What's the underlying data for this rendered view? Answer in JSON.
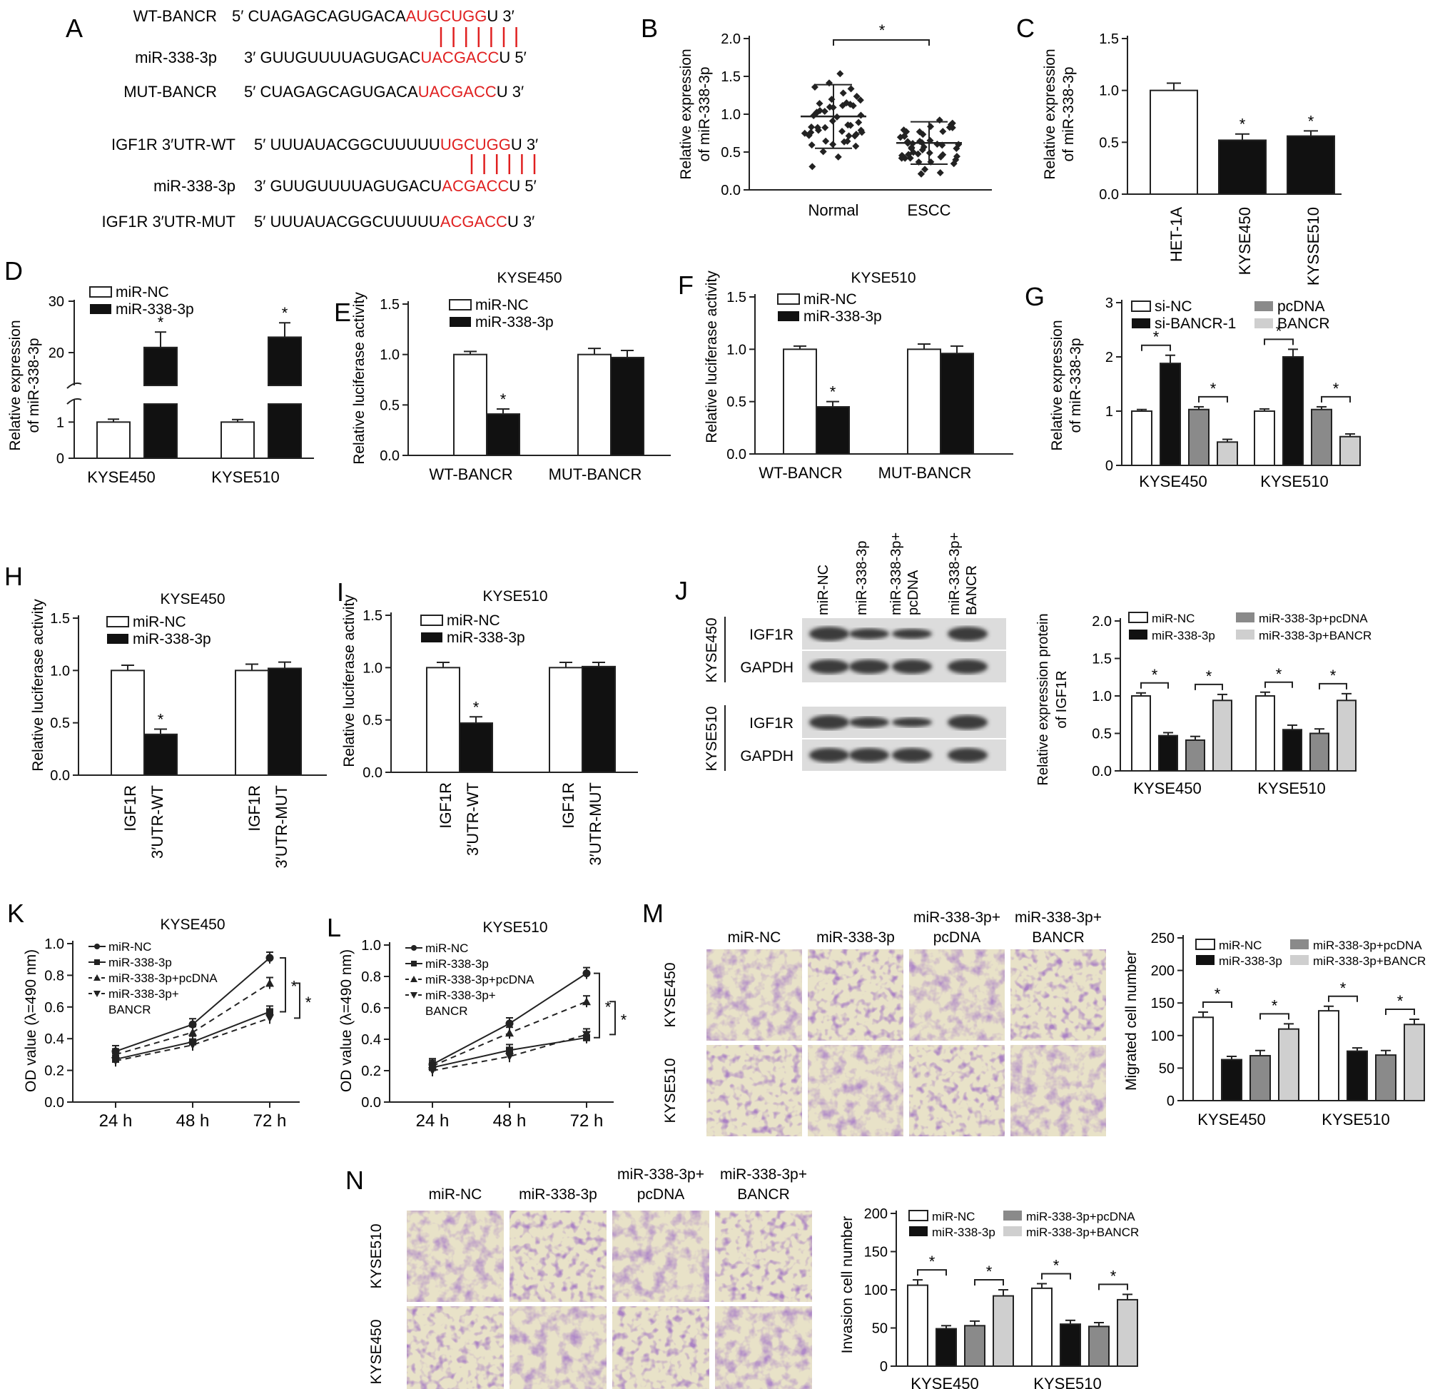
{
  "colors": {
    "red": "#e02020",
    "black": "#111111",
    "dark_gray": "#6d6d6d",
    "mid_gray": "#8a8a8a",
    "light_gray": "#cfcfcf",
    "blot": "#3a3a3a",
    "stain": "#6b3d8f"
  },
  "panel_letters": {
    "A": "A",
    "B": "B",
    "C": "C",
    "D": "D",
    "E": "E",
    "F": "F",
    "G": "G",
    "H": "H",
    "I": "I",
    "J": "J",
    "K": "K",
    "L": "L",
    "M": "M",
    "N": "N"
  },
  "panelA": {
    "rows": [
      {
        "label": "WT-BANCR",
        "p5": "5′ ",
        "seq": "CUAGAGCAGUGACA",
        "red": "AUGCUGG",
        "tail": "U",
        "p3": " 3′"
      },
      {
        "label": "miR-338-3p",
        "p5": "3′ ",
        "seq": "GUUGUUUUAGUGAC",
        "red": "UACGACC",
        "tail": "U",
        "p3": " 5′"
      },
      {
        "label": "MUT-BANCR",
        "p5": "5′ ",
        "seq": "CUAGAGCAGUGACA",
        "red": "UACGACC",
        "tail": "U",
        "p3": " 3′"
      },
      {
        "label": "IGF1R 3′UTR-WT",
        "p5": "5′ ",
        "seq": "UUUAUACGGCUUUUU",
        "red": "UGCUGG",
        "tail": "U",
        "p3": " 3′"
      },
      {
        "label": "miR-338-3p",
        "p5": "3′ ",
        "seq": "GUUGUUUUAGUGACU",
        "red": "ACGACC",
        "tail": "U",
        "p3": " 5′"
      },
      {
        "label": "IGF1R 3′UTR-MUT",
        "p5": "5′ ",
        "seq": "UUUAUACGGCUUUUU",
        "red": "ACGACC",
        "tail": "U",
        "p3": " 3′"
      }
    ]
  },
  "chart_data": [
    {
      "id": "B",
      "type": "scatter",
      "ylabel": "Relative expression of miR-338-3p",
      "categories": [
        "Normal",
        "ESCC"
      ],
      "ylim": [
        0,
        2.0
      ],
      "yticks": [
        "0.0",
        "0.5",
        "1.0",
        "1.5",
        "2.0"
      ],
      "means": [
        0.97,
        0.62
      ],
      "sd": [
        0.42,
        0.28
      ],
      "sig": "*"
    },
    {
      "id": "C",
      "type": "bar",
      "ylabel": "Relative expression of miR-338-3p",
      "categories": [
        "HET-1A",
        "KYSE450",
        "KYSSE510"
      ],
      "values": [
        1.0,
        0.52,
        0.56
      ],
      "errors": [
        0.07,
        0.06,
        0.05
      ],
      "ylim": [
        0,
        1.5
      ],
      "yticks": [
        "0.0",
        "0.5",
        "1.0",
        "1.5"
      ],
      "stars": [
        "",
        "*",
        "*"
      ]
    },
    {
      "id": "D",
      "type": "bar",
      "ylabel": "Relative expression of miR-338-3p",
      "categories": [
        "KYSE450",
        "KYSE510"
      ],
      "series": [
        {
          "name": "miR-NC",
          "values": [
            1.0,
            1.0
          ],
          "errors": [
            0.08,
            0.07
          ]
        },
        {
          "name": "miR-338-3p",
          "values": [
            21.0,
            23.0
          ],
          "errors": [
            3.0,
            2.8
          ]
        }
      ],
      "yticks": [
        "0",
        "1",
        "20",
        "30"
      ],
      "axis_break": true,
      "stars": [
        "*",
        "*"
      ]
    },
    {
      "id": "E",
      "type": "bar",
      "title": "KYSE450",
      "ylabel": "Relative luciferase activity",
      "categories": [
        "WT-BANCR",
        "MUT-BANCR"
      ],
      "series": [
        {
          "name": "miR-NC",
          "values": [
            1.0,
            1.0
          ],
          "errors": [
            0.03,
            0.06
          ]
        },
        {
          "name": "miR-338-3p",
          "values": [
            0.41,
            0.97
          ],
          "errors": [
            0.05,
            0.07
          ]
        }
      ],
      "ylim": [
        0,
        1.5
      ],
      "yticks": [
        "0.0",
        "0.5",
        "1.0",
        "1.5"
      ],
      "stars": [
        "*",
        ""
      ]
    },
    {
      "id": "F",
      "type": "bar",
      "title": "KYSE510",
      "ylabel": "Relative luciferase activity",
      "categories": [
        "WT-BANCR",
        "MUT-BANCR"
      ],
      "series": [
        {
          "name": "miR-NC",
          "values": [
            1.0,
            1.0
          ],
          "errors": [
            0.03,
            0.05
          ]
        },
        {
          "name": "miR-338-3p",
          "values": [
            0.45,
            0.96
          ],
          "errors": [
            0.05,
            0.07
          ]
        }
      ],
      "ylim": [
        0,
        1.5
      ],
      "yticks": [
        "0.0",
        "0.5",
        "1.0",
        "1.5"
      ],
      "stars": [
        "*",
        ""
      ]
    },
    {
      "id": "G",
      "type": "bar",
      "ylabel": "Relative expression of miR-338-3p",
      "categories": [
        "KYSE450",
        "KYSE510"
      ],
      "series": [
        {
          "name": "si-NC",
          "values": [
            1.0,
            1.0
          ],
          "errors": [
            0.03,
            0.04
          ]
        },
        {
          "name": "si-BANCR-1",
          "values": [
            1.88,
            2.0
          ],
          "errors": [
            0.15,
            0.14
          ]
        },
        {
          "name": "pcDNA",
          "values": [
            1.03,
            1.03
          ],
          "errors": [
            0.05,
            0.05
          ]
        },
        {
          "name": "BANCR",
          "values": [
            0.43,
            0.53
          ],
          "errors": [
            0.05,
            0.05
          ]
        }
      ],
      "ylim": [
        0,
        3
      ],
      "yticks": [
        "0",
        "1",
        "2",
        "3"
      ],
      "brackets": [
        [
          0,
          1
        ],
        [
          2,
          3
        ]
      ]
    },
    {
      "id": "H",
      "type": "bar",
      "title": "KYSE450",
      "ylabel": "Relative luciferase activity",
      "categories": [
        "IGF1R 3′UTR-WT",
        "IGF1R 3′UTR-MUT"
      ],
      "series": [
        {
          "name": "miR-NC",
          "values": [
            1.0,
            1.0
          ],
          "errors": [
            0.05,
            0.06
          ]
        },
        {
          "name": "miR-338-3p",
          "values": [
            0.39,
            1.02
          ],
          "errors": [
            0.05,
            0.06
          ]
        }
      ],
      "ylim": [
        0,
        1.5
      ],
      "yticks": [
        "0.0",
        "0.5",
        "1.0",
        "1.5"
      ],
      "stars": [
        "*",
        ""
      ]
    },
    {
      "id": "I",
      "type": "bar",
      "title": "KYSE510",
      "ylabel": "Relative luciferase activity",
      "categories": [
        "IGF1R 3′UTR-WT",
        "IGF1R 3′UTR-MUT"
      ],
      "series": [
        {
          "name": "miR-NC",
          "values": [
            1.0,
            1.0
          ],
          "errors": [
            0.05,
            0.05
          ]
        },
        {
          "name": "miR-338-3p",
          "values": [
            0.47,
            1.01
          ],
          "errors": [
            0.06,
            0.04
          ]
        }
      ],
      "ylim": [
        0,
        1.5
      ],
      "yticks": [
        "0.0",
        "0.5",
        "1.0",
        "1.5"
      ],
      "stars": [
        "*",
        ""
      ]
    },
    {
      "id": "J",
      "type": "bar",
      "ylabel": "Relative expression protein of IGF1R",
      "categories": [
        "KYSE450",
        "KYSE510"
      ],
      "series": [
        {
          "name": "miR-NC",
          "values": [
            1.0,
            1.0
          ],
          "errors": [
            0.04,
            0.05
          ]
        },
        {
          "name": "miR-338-3p",
          "values": [
            0.47,
            0.55
          ],
          "errors": [
            0.04,
            0.06
          ]
        },
        {
          "name": "miR-338-3p+pcDNA",
          "values": [
            0.41,
            0.5
          ],
          "errors": [
            0.05,
            0.06
          ]
        },
        {
          "name": "miR-338-3p+BANCR",
          "values": [
            0.94,
            0.94
          ],
          "errors": [
            0.08,
            0.09
          ]
        }
      ],
      "ylim": [
        0,
        2.0
      ],
      "yticks": [
        "0.0",
        "0.5",
        "1.0",
        "1.5",
        "2.0"
      ],
      "brackets": [
        [
          0,
          1
        ],
        [
          2,
          3
        ]
      ]
    },
    {
      "id": "K",
      "type": "line",
      "title": "KYSE450",
      "ylabel": "OD value (λ=490 nm)",
      "x": [
        "24 h",
        "48 h",
        "72 h"
      ],
      "series": [
        {
          "name": "miR-NC",
          "values": [
            0.32,
            0.49,
            0.91
          ]
        },
        {
          "name": "miR-338-3p",
          "values": [
            0.27,
            0.38,
            0.57
          ]
        },
        {
          "name": "miR-338-3p+pcDNA",
          "values": [
            0.3,
            0.44,
            0.75
          ]
        },
        {
          "name": "miR-338-3p+BANCR",
          "values": [
            0.26,
            0.36,
            0.53
          ]
        }
      ],
      "ylim": [
        0,
        1.0
      ],
      "yticks": [
        "0.0",
        "0.2",
        "0.4",
        "0.6",
        "0.8",
        "1.0"
      ]
    },
    {
      "id": "L",
      "type": "line",
      "title": "KYSE510",
      "ylabel": "OD value (λ=490 nm)",
      "x": [
        "24 h",
        "48 h",
        "72 h"
      ],
      "series": [
        {
          "name": "miR-NC",
          "values": [
            0.24,
            0.5,
            0.82
          ]
        },
        {
          "name": "miR-338-3p",
          "values": [
            0.22,
            0.33,
            0.41
          ]
        },
        {
          "name": "miR-338-3p+pcDNA",
          "values": [
            0.23,
            0.44,
            0.64
          ]
        },
        {
          "name": "miR-338-3p+BANCR",
          "values": [
            0.2,
            0.29,
            0.43
          ]
        }
      ],
      "ylim": [
        0,
        1.0
      ],
      "yticks": [
        "0.0",
        "0.2",
        "0.4",
        "0.6",
        "0.8",
        "1.0"
      ]
    },
    {
      "id": "M",
      "type": "bar",
      "ylabel": "Migrated cell number",
      "categories": [
        "KYSE450",
        "KYSE510"
      ],
      "series": [
        {
          "name": "miR-NC",
          "values": [
            128,
            138
          ],
          "errors": [
            8,
            7
          ]
        },
        {
          "name": "miR-338-3p",
          "values": [
            63,
            76
          ],
          "errors": [
            5,
            5
          ]
        },
        {
          "name": "miR-338-3p+pcDNA",
          "values": [
            69,
            70
          ],
          "errors": [
            8,
            7
          ]
        },
        {
          "name": "miR-338-3p+BANCR",
          "values": [
            110,
            117
          ],
          "errors": [
            8,
            8
          ]
        }
      ],
      "ylim": [
        0,
        250
      ],
      "yticks": [
        "0",
        "50",
        "100",
        "150",
        "200",
        "250"
      ],
      "brackets": [
        [
          0,
          1
        ],
        [
          2,
          3
        ]
      ]
    },
    {
      "id": "N",
      "type": "bar",
      "ylabel": "Invasion cell number",
      "categories": [
        "KYSE450",
        "KYSE510"
      ],
      "series": [
        {
          "name": "miR-NC",
          "values": [
            106,
            102
          ],
          "errors": [
            7,
            6
          ]
        },
        {
          "name": "miR-338-3p",
          "values": [
            49,
            55
          ],
          "errors": [
            4,
            5
          ]
        },
        {
          "name": "miR-338-3p+pcDNA",
          "values": [
            53,
            52
          ],
          "errors": [
            6,
            5
          ]
        },
        {
          "name": "miR-338-3p+BANCR",
          "values": [
            92,
            87
          ],
          "errors": [
            8,
            7
          ]
        }
      ],
      "ylim": [
        0,
        200
      ],
      "yticks": [
        "0",
        "50",
        "100",
        "150",
        "200"
      ],
      "brackets": [
        [
          0,
          1
        ],
        [
          2,
          3
        ]
      ]
    }
  ],
  "blot": {
    "lanes": [
      "miR-NC",
      "miR-338-3p",
      "miR-338-3p+ pcDNA",
      "miR-338-3p+ BANCR"
    ],
    "blocks": [
      {
        "cell": "KYSE450",
        "bands": [
          "IGF1R",
          "GAPDH"
        ]
      },
      {
        "cell": "KYSE510",
        "bands": [
          "IGF1R",
          "GAPDH"
        ]
      }
    ]
  },
  "micro": {
    "M": {
      "columns": [
        "miR-NC",
        "miR-338-3p",
        "miR-338-3p+ pcDNA",
        "miR-338-3p+ BANCR"
      ],
      "rows": [
        "KYSE450",
        "KYSE510"
      ]
    },
    "N": {
      "columns": [
        "miR-NC",
        "miR-338-3p",
        "miR-338-3p+ pcDNA",
        "miR-338-3p+ BANCR"
      ],
      "rows": [
        "KYSE510",
        "KYSE450"
      ]
    }
  }
}
